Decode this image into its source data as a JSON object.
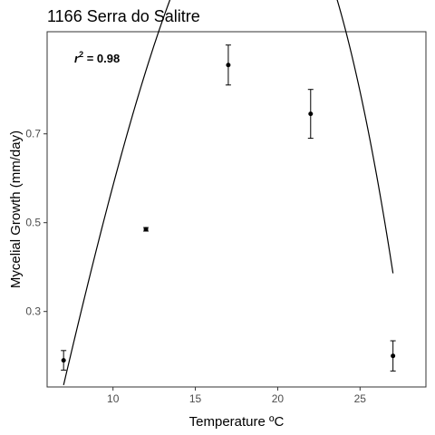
{
  "chart_data": {
    "type": "scatter",
    "title": "1166 Serra do Salitre",
    "xlabel": "Temperature ºC",
    "ylabel": "Mycelial Growth (mm/day)",
    "annotation": {
      "prefix": "r",
      "sup": "2",
      "value": " = 0.98"
    },
    "xlim": [
      6,
      29
    ],
    "ylim": [
      0.13,
      0.93
    ],
    "xticks": [
      10,
      15,
      20,
      25
    ],
    "yticks": [
      0.3,
      0.5,
      0.7
    ],
    "ytick_labels": [
      "0.3",
      "0.5",
      "0.7"
    ],
    "grid": false,
    "points": [
      {
        "x": 7,
        "y": 0.19,
        "err": 0.022
      },
      {
        "x": 12,
        "y": 0.485,
        "err": 0.004
      },
      {
        "x": 17,
        "y": 0.855,
        "err": 0.045
      },
      {
        "x": 22,
        "y": 0.745,
        "err": 0.055
      },
      {
        "x": 27,
        "y": 0.2,
        "err": 0.034
      }
    ],
    "fit_curve": {
      "type": "cubic",
      "coefficients": [
        -0.9744,
        0.1458,
        0.003667,
        -0.0002667
      ],
      "x_range": [
        7,
        27
      ]
    }
  }
}
